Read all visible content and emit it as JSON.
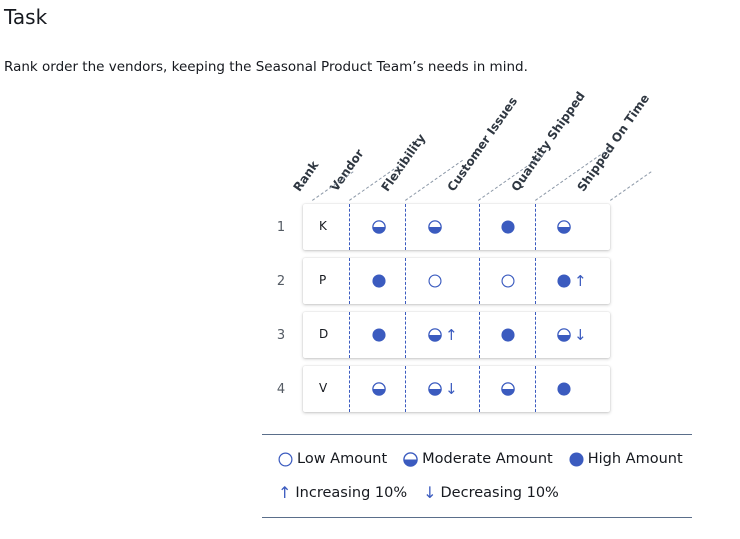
{
  "title": "Task",
  "instructions": "Rank order the vendors, keeping the Seasonal Product Team’s needs in mind.",
  "columns": {
    "rank": "Rank",
    "vendor": "Vendor",
    "flexibility": "Flexibility",
    "customer_issues": "Customer Issues",
    "quantity_shipped": "Quantity Shipped",
    "shipped_on_time": "Shipped On Time"
  },
  "rows": [
    {
      "rank": "1",
      "vendor": "K"
    },
    {
      "rank": "2",
      "vendor": "P"
    },
    {
      "rank": "3",
      "vendor": "D"
    },
    {
      "rank": "4",
      "vendor": "V"
    }
  ],
  "cell_values": {
    "K": {
      "flexibility": "moderate",
      "customer_issues": "moderate",
      "quantity_shipped": "high",
      "shipped_on_time": "moderate"
    },
    "P": {
      "flexibility": "high",
      "customer_issues": "low",
      "quantity_shipped": "low",
      "shipped_on_time": "high-increasing"
    },
    "D": {
      "flexibility": "high",
      "customer_issues": "moderate-increasing",
      "quantity_shipped": "high",
      "shipped_on_time": "moderate-decreasing"
    },
    "V": {
      "flexibility": "moderate",
      "customer_issues": "moderate-decreasing",
      "quantity_shipped": "moderate",
      "shipped_on_time": "high"
    }
  },
  "legend": {
    "low": "Low Amount",
    "moderate": "Moderate Amount",
    "high": "High Amount",
    "increasing": "Increasing 10%",
    "decreasing": "Decreasing 10%",
    "increasing_symbol": "↑",
    "decreasing_symbol": "↓"
  },
  "colors": {
    "accent": "#3b5bbf"
  }
}
